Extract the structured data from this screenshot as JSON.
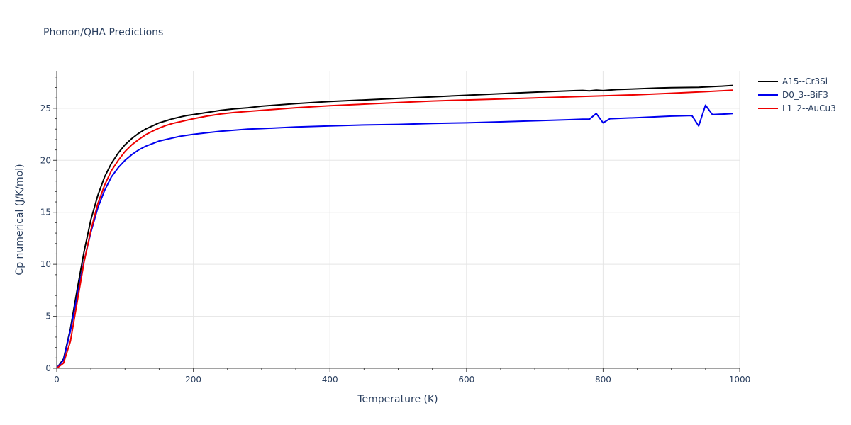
{
  "chart_data": {
    "type": "line",
    "title": "Phonon/QHA Predictions",
    "xlabel": "Temperature (K)",
    "ylabel": "Cp numerical (J/K/mol)",
    "xlim": [
      0,
      1000
    ],
    "ylim": [
      0,
      28.6
    ],
    "xticks": [
      0,
      200,
      400,
      600,
      800,
      1000
    ],
    "yticks": [
      0,
      5,
      10,
      15,
      20,
      25
    ],
    "grid": true,
    "legend_position": "top-right",
    "series": [
      {
        "name": "A15--Cr3Si",
        "color": "#000000",
        "x": [
          0,
          10,
          20,
          30,
          40,
          50,
          60,
          70,
          80,
          90,
          100,
          110,
          120,
          130,
          140,
          150,
          160,
          170,
          180,
          190,
          200,
          220,
          240,
          260,
          280,
          300,
          350,
          400,
          450,
          500,
          550,
          600,
          650,
          700,
          720,
          740,
          760,
          770,
          780,
          790,
          800,
          820,
          840,
          860,
          880,
          900,
          920,
          940,
          950,
          960,
          980,
          990
        ],
        "y": [
          0,
          0.9,
          3.8,
          7.6,
          11.2,
          14.3,
          16.6,
          18.4,
          19.7,
          20.7,
          21.5,
          22.1,
          22.6,
          23.0,
          23.3,
          23.6,
          23.8,
          24.0,
          24.15,
          24.3,
          24.4,
          24.6,
          24.8,
          24.95,
          25.05,
          25.2,
          25.45,
          25.65,
          25.8,
          25.95,
          26.1,
          26.25,
          26.4,
          26.55,
          26.6,
          26.65,
          26.7,
          26.72,
          26.68,
          26.75,
          26.7,
          26.8,
          26.85,
          26.9,
          26.95,
          26.98,
          27.0,
          27.02,
          27.05,
          27.08,
          27.15,
          27.2
        ]
      },
      {
        "name": "D0_3--BiF3",
        "color": "#0000ee",
        "x": [
          0,
          10,
          20,
          30,
          40,
          50,
          60,
          70,
          80,
          90,
          100,
          110,
          120,
          130,
          140,
          150,
          160,
          170,
          180,
          190,
          200,
          220,
          240,
          260,
          280,
          300,
          350,
          400,
          450,
          500,
          550,
          600,
          650,
          700,
          750,
          770,
          780,
          790,
          800,
          810,
          850,
          900,
          930,
          940,
          950,
          960,
          980,
          990
        ],
        "y": [
          0,
          0.8,
          3.6,
          7.0,
          10.3,
          13.1,
          15.4,
          17.1,
          18.4,
          19.3,
          20.0,
          20.55,
          21.0,
          21.35,
          21.6,
          21.85,
          22.0,
          22.15,
          22.3,
          22.4,
          22.5,
          22.65,
          22.8,
          22.9,
          23.0,
          23.05,
          23.2,
          23.3,
          23.4,
          23.45,
          23.55,
          23.6,
          23.7,
          23.8,
          23.9,
          23.95,
          23.95,
          24.5,
          23.6,
          24.0,
          24.1,
          24.25,
          24.3,
          23.3,
          25.3,
          24.4,
          24.45,
          24.5
        ]
      },
      {
        "name": "L1_2--AuCu3",
        "color": "#ee0000",
        "x": [
          0,
          10,
          20,
          30,
          40,
          50,
          60,
          70,
          80,
          90,
          100,
          110,
          120,
          130,
          140,
          150,
          160,
          170,
          180,
          190,
          200,
          220,
          240,
          260,
          280,
          300,
          350,
          400,
          450,
          500,
          550,
          600,
          650,
          700,
          750,
          800,
          850,
          900,
          950,
          990
        ],
        "y": [
          0,
          0.5,
          2.6,
          6.4,
          10.2,
          13.3,
          15.8,
          17.6,
          19.0,
          20.0,
          20.85,
          21.5,
          22.0,
          22.45,
          22.8,
          23.1,
          23.35,
          23.55,
          23.7,
          23.85,
          24.0,
          24.25,
          24.45,
          24.6,
          24.7,
          24.8,
          25.05,
          25.25,
          25.4,
          25.55,
          25.7,
          25.8,
          25.9,
          26.0,
          26.1,
          26.2,
          26.3,
          26.45,
          26.6,
          26.75
        ]
      }
    ]
  }
}
